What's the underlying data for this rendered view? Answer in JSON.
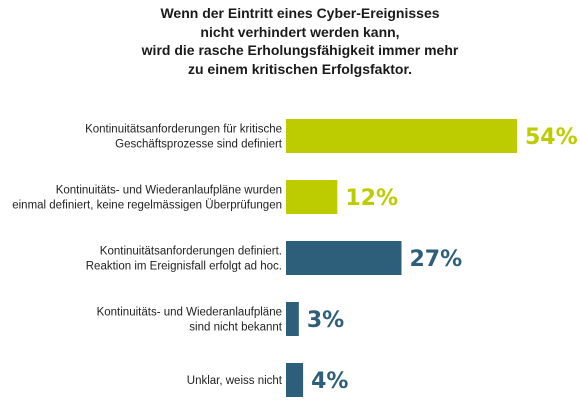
{
  "title_lines": [
    "Wenn der Eintritt eines Cyber-Ereignisses",
    "nicht verhindert werden kann,",
    "wird die rasche Erholungsfähigkeit immer mehr",
    "zu einem kritischen Erfolgsfaktor."
  ],
  "colors": {
    "green": "#bccc00",
    "blue": "#2e5f7a"
  },
  "chart_data": {
    "type": "bar",
    "orientation": "horizontal",
    "title": "Wenn der Eintritt eines Cyber-Ereignisses nicht verhindert werden kann, wird die rasche Erholungsfähigkeit immer mehr zu einem kritischen Erfolgsfaktor.",
    "categories": [
      [
        "Kontinuitätsanforderungen für kritische",
        "Geschäftsprozesse sind definiert"
      ],
      [
        "Kontinuitäts- und Wiederanlaufpläne wurden",
        "einmal definiert, keine regelmässigen Überprüfungen"
      ],
      [
        "Kontinuitätsanforderungen definiert.",
        "Reaktion im Ereignisfall erfolgt ad hoc."
      ],
      [
        "Kontinuitäts- und Wiederanlaufpläne",
        "sind nicht bekannt"
      ],
      [
        "Unklar, weiss nicht"
      ]
    ],
    "values": [
      54,
      12,
      27,
      3,
      4
    ],
    "value_labels": [
      "54%",
      "12%",
      "27%",
      "3%",
      "4%"
    ],
    "bar_colors": [
      "#bccc00",
      "#bccc00",
      "#2e5f7a",
      "#2e5f7a",
      "#2e5f7a"
    ],
    "xlim": [
      0,
      54
    ],
    "grid": false,
    "legend": "none"
  }
}
